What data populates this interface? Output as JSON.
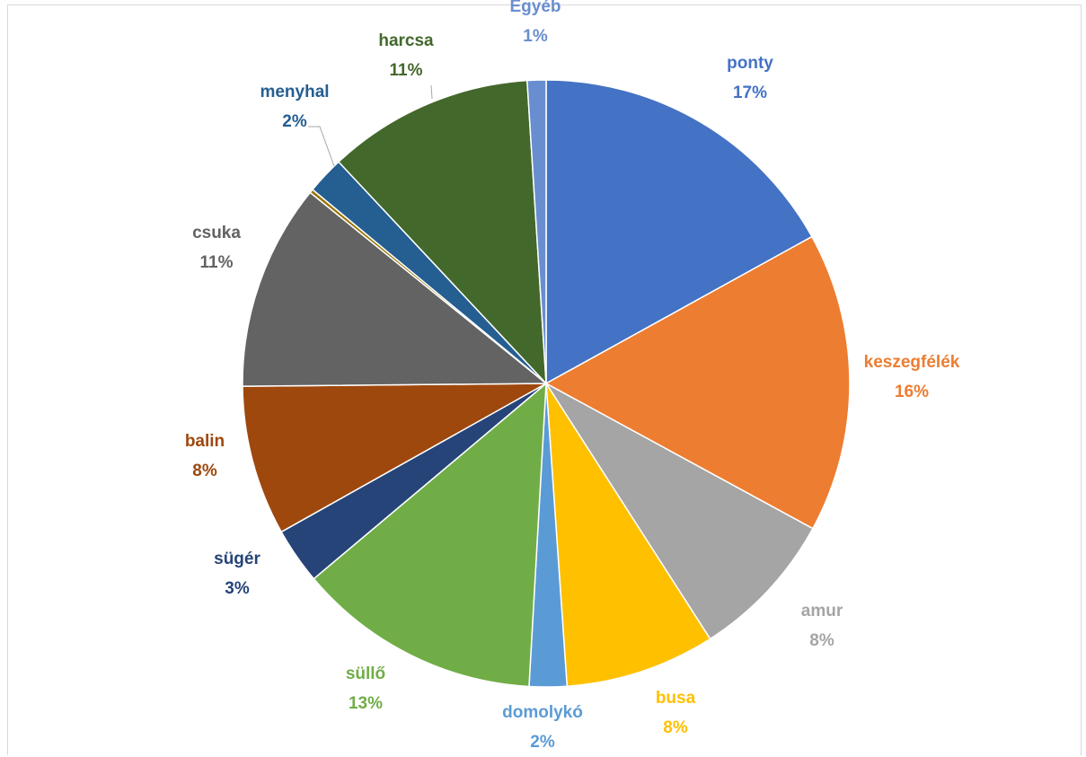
{
  "chart_data": {
    "type": "pie",
    "title": "",
    "slices": [
      {
        "label": "ponty",
        "value": 17,
        "percent_label": "17%",
        "color": "#4472C4"
      },
      {
        "label": "keszegfélék",
        "value": 16,
        "percent_label": "16%",
        "color": "#ED7D31"
      },
      {
        "label": "amur",
        "value": 8,
        "percent_label": "8%",
        "color": "#A5A5A5"
      },
      {
        "label": "busa",
        "value": 8,
        "percent_label": "8%",
        "color": "#FFC000"
      },
      {
        "label": "domolykó",
        "value": 2,
        "percent_label": "2%",
        "color": "#5B9BD5"
      },
      {
        "label": "süllő",
        "value": 13,
        "percent_label": "13%",
        "color": "#70AD47"
      },
      {
        "label": "sügér",
        "value": 3,
        "percent_label": "3%",
        "color": "#264478"
      },
      {
        "label": "balin",
        "value": 8,
        "percent_label": "8%",
        "color": "#9E480E"
      },
      {
        "label": "csuka",
        "value": 11,
        "percent_label": "11%",
        "color": "#636363"
      },
      {
        "label": "",
        "value": 0.2,
        "percent_label": "",
        "color": "#997300"
      },
      {
        "label": "menyhal",
        "value": 2,
        "percent_label": "2%",
        "color": "#255E91"
      },
      {
        "label": "harcsa",
        "value": 11,
        "percent_label": "11%",
        "color": "#43682B"
      },
      {
        "label": "Egyéb",
        "value": 1,
        "percent_label": "1%",
        "color": "#698ED0"
      }
    ],
    "legend": "none",
    "data_labels": "outside"
  }
}
